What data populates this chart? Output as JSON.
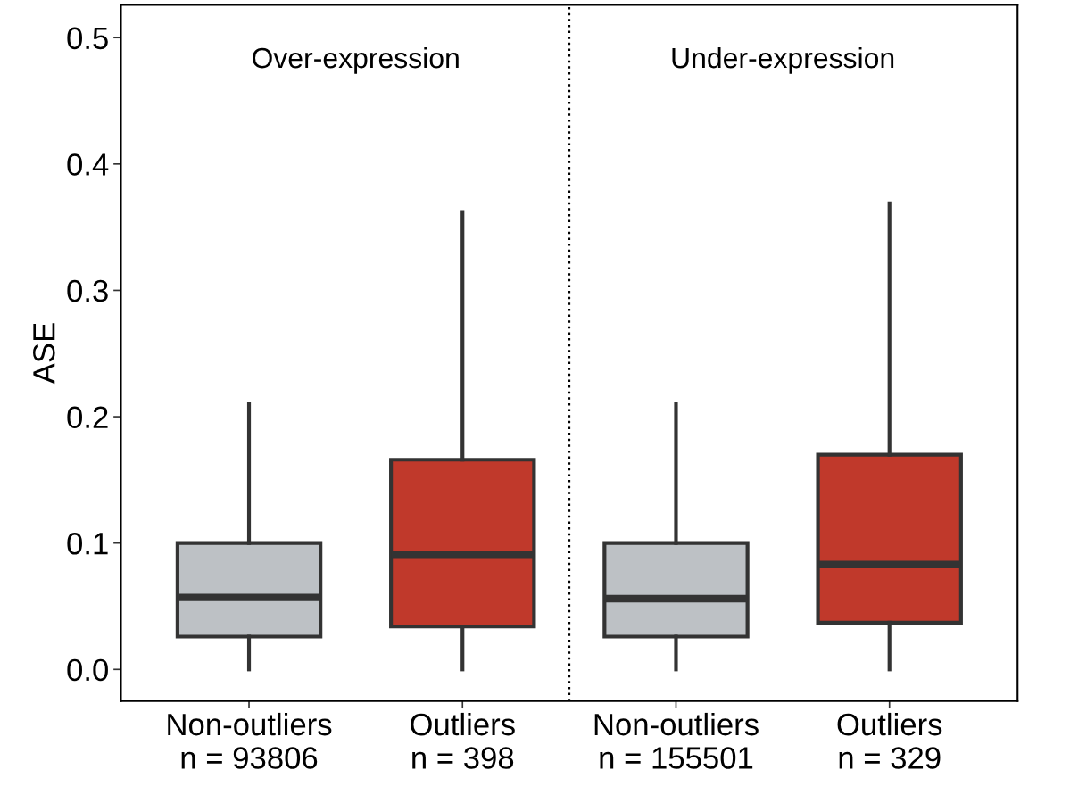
{
  "chart_data": {
    "type": "box",
    "ylabel": "ASE",
    "categories": [
      "Non-outliers\nn = 93806",
      "Outliers\nn = 398",
      "Non-outliers\nn = 155501",
      "Outliers\nn = 329"
    ],
    "colors": [
      "#bdc1c5",
      "#c0392b",
      "#bdc1c5",
      "#c0392b"
    ],
    "boxes": [
      {
        "low": 0,
        "q1": 0.026,
        "median": 0.057,
        "q3": 0.1,
        "high": 0.21
      },
      {
        "low": 0,
        "q1": 0.034,
        "median": 0.091,
        "q3": 0.166,
        "high": 0.362
      },
      {
        "low": 0,
        "q1": 0.026,
        "median": 0.056,
        "q3": 0.1,
        "high": 0.21
      },
      {
        "low": 0,
        "q1": 0.037,
        "median": 0.083,
        "q3": 0.17,
        "high": 0.369
      }
    ],
    "ylim": [
      -0.025,
      0.526
    ],
    "yticks": [
      {
        "value": 0,
        "label": "0.0"
      },
      0.1,
      0.2,
      0.3,
      0.4,
      0.5
    ],
    "annotations": [
      "Over-expression",
      "Under-expression"
    ],
    "grid": false,
    "legend": false
  }
}
